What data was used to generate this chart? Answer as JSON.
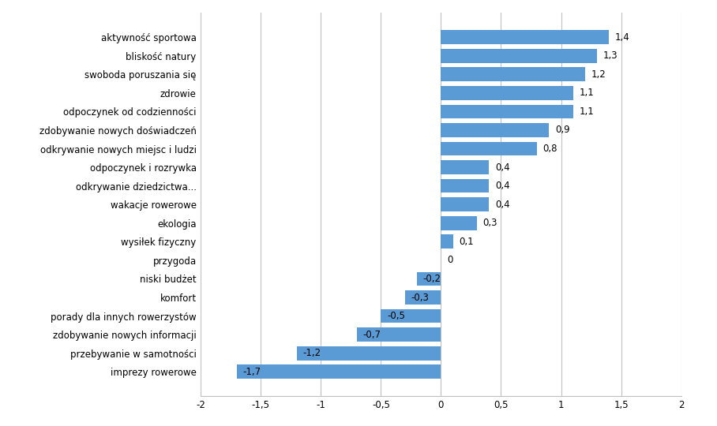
{
  "categories": [
    "imprezy rowerowe",
    "przebywanie w samotności",
    "zdobywanie nowych informacji",
    "porady dla innych rowerzystów",
    "komfort",
    "niski budżet",
    "przygoda",
    "wysiłek fizyczny",
    "ekologia",
    "wakacje rowerowe",
    "odkrywanie dziedzictwa...",
    "odpoczynek i rozrywka",
    "odkrywanie nowych miejsc i ludzi",
    "zdobywanie nowych doświadczeń",
    "odpoczynek od codzienności",
    "zdrowie",
    "swoboda poruszania się",
    "bliskość natury",
    "aktywność sportowa"
  ],
  "values": [
    -1.7,
    -1.2,
    -0.7,
    -0.5,
    -0.3,
    -0.2,
    0.0,
    0.1,
    0.3,
    0.4,
    0.4,
    0.4,
    0.8,
    0.9,
    1.1,
    1.1,
    1.2,
    1.3,
    1.4
  ],
  "bar_color": "#5B9BD5",
  "xlim": [
    -2,
    2
  ],
  "xticks": [
    -2,
    -1.5,
    -1,
    -0.5,
    0,
    0.5,
    1,
    1.5,
    2
  ],
  "xtick_labels": [
    "-2",
    "-1,5",
    "-1",
    "-0,5",
    "0",
    "0,5",
    "1",
    "1,5",
    "2"
  ],
  "value_labels": [
    "-1,7",
    "-1,2",
    "-0,7",
    "-0,5",
    "-0,3",
    "-0,2",
    "0",
    "0,1",
    "0,3",
    "0,4",
    "0,4",
    "0,4",
    "0,8",
    "0,9",
    "1,1",
    "1,1",
    "1,2",
    "1,3",
    "1,4"
  ],
  "grid_color": "#C0C0C0",
  "background_color": "#FFFFFF",
  "bar_height": 0.75,
  "fontsize_labels": 8.5,
  "fontsize_values": 8.5
}
